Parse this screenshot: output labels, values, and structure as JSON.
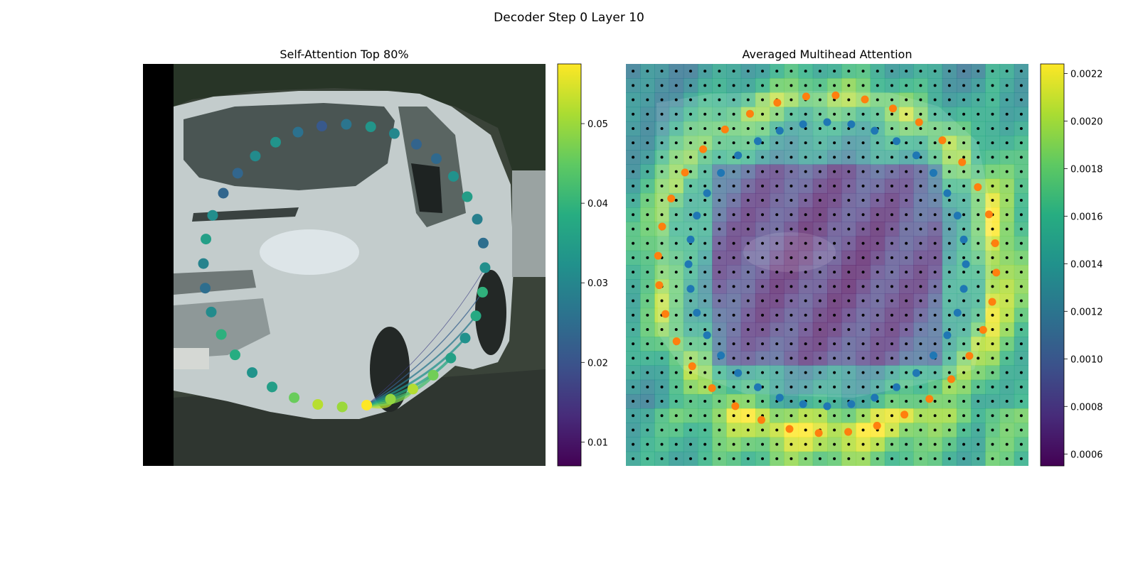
{
  "figure": {
    "suptitle": "Decoder Step 0 Layer 10"
  },
  "left_panel": {
    "title": "Self-Attention Top 80%",
    "colorbar": {
      "colormap": "viridis",
      "min": 0.007,
      "max": 0.0575,
      "ticks": [
        "0.01",
        "0.02",
        "0.03",
        "0.04",
        "0.05"
      ],
      "tick_values": [
        0.01,
        0.02,
        0.03,
        0.04,
        0.05
      ]
    },
    "query_point_index": 0
  },
  "right_panel": {
    "title": "Averaged Multihead Attention",
    "colorbar": {
      "colormap": "viridis",
      "min": 0.00055,
      "max": 0.00224,
      "ticks": [
        "0.0006",
        "0.0008",
        "0.0010",
        "0.0012",
        "0.0014",
        "0.0016",
        "0.0018",
        "0.0020",
        "0.0022"
      ],
      "tick_values": [
        0.0006,
        0.0008,
        0.001,
        0.0012,
        0.0014,
        0.0016,
        0.0018,
        0.002,
        0.0022
      ]
    },
    "grid_size": 28,
    "inner_point_color": "#1f77b4",
    "outer_point_color": "#ff7f0e",
    "dot_color": "#000000"
  },
  "colors": {
    "letterbox": "#000000",
    "road": "#2f3630",
    "van_body": "#c3cccc",
    "windshield": "#4a5553",
    "trees": "#283527"
  }
}
